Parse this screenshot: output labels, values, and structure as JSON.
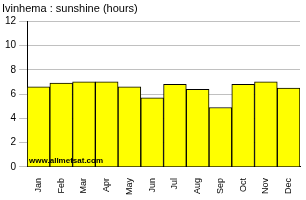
{
  "chart_data": {
    "type": "bar",
    "title": "Ivinhema : sunshine (hours)",
    "categories": [
      "Jan",
      "Feb",
      "Mar",
      "Apr",
      "May",
      "Jun",
      "Jul",
      "Aug",
      "Sep",
      "Oct",
      "Nov",
      "Dec"
    ],
    "values": [
      6.6,
      6.9,
      7.0,
      7.0,
      6.6,
      5.7,
      6.8,
      6.4,
      4.9,
      6.8,
      7.0,
      6.5
    ],
    "color": "#ffff00",
    "ylim": [
      0,
      12
    ],
    "yticks": [
      0,
      2,
      4,
      6,
      8,
      10,
      12
    ],
    "grid": true,
    "annotations": [
      "www.allmetsat.com"
    ]
  }
}
